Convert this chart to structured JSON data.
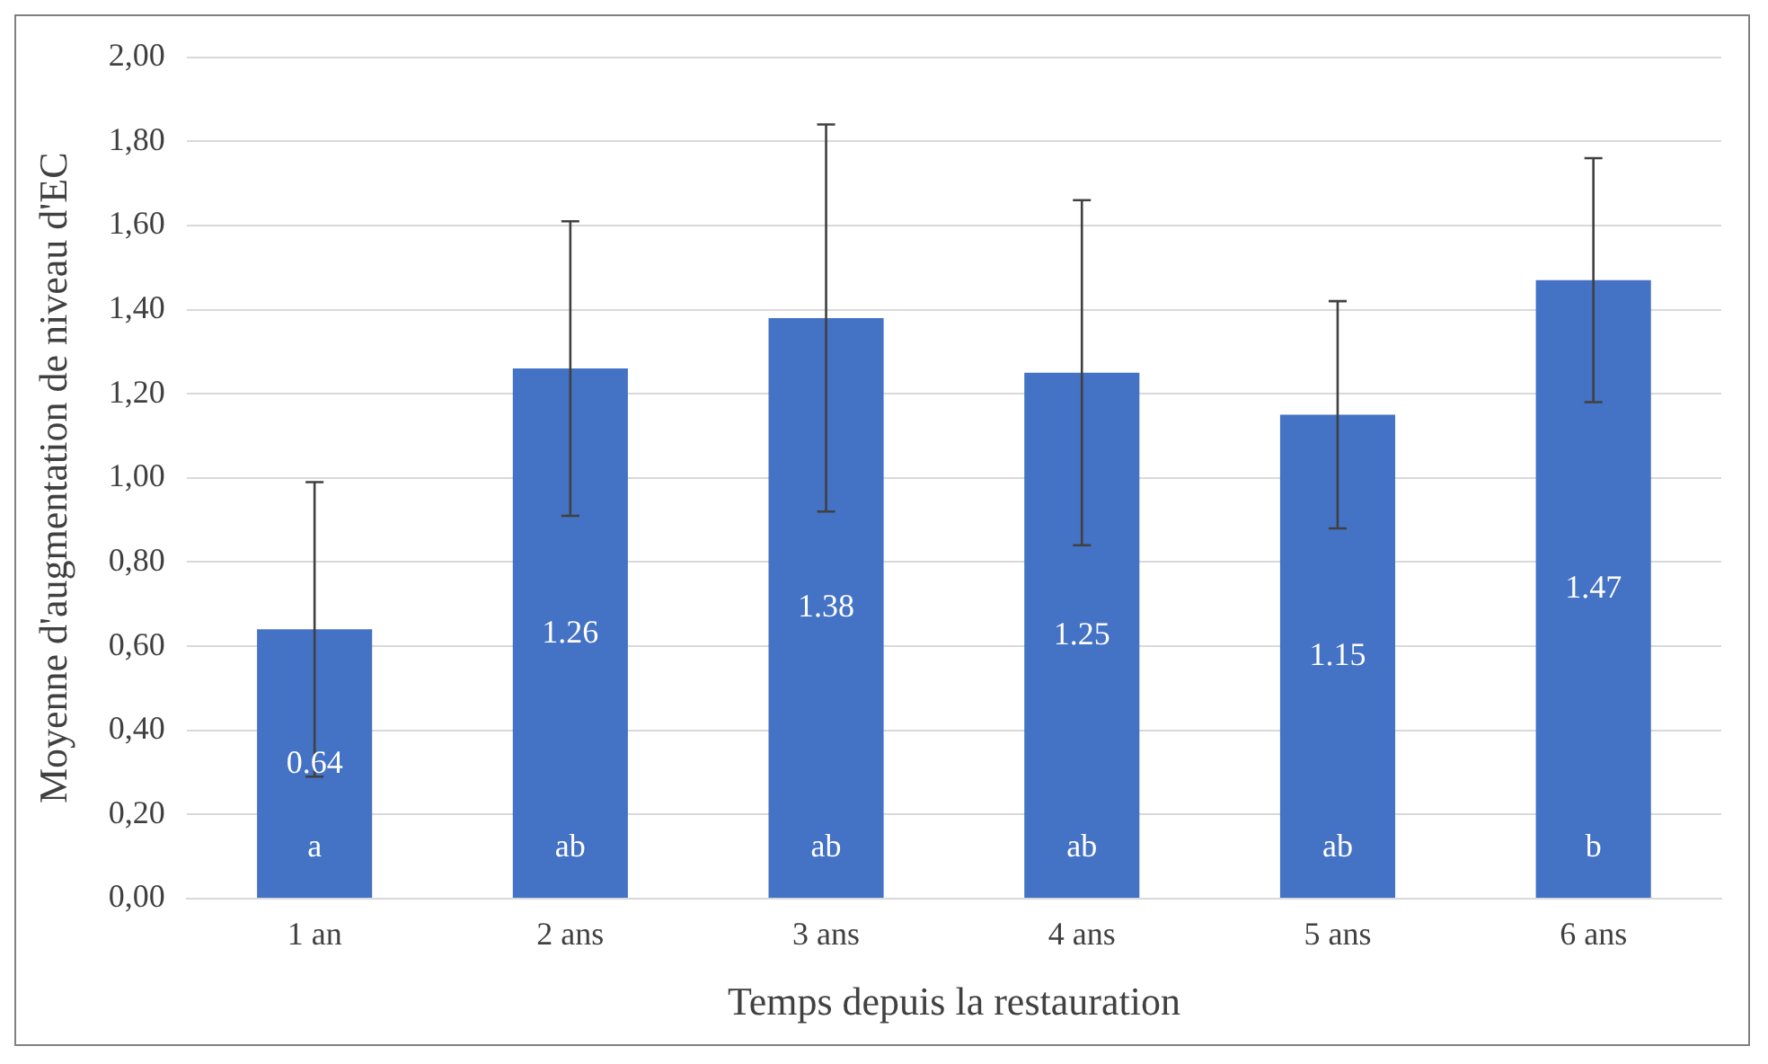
{
  "chart_data": {
    "type": "bar",
    "xlabel": "Temps depuis la restauration",
    "ylabel": "Moyenne d'augmentation de niveau d'EC",
    "categories": [
      "1 an",
      "2 ans",
      "3 ans",
      "4 ans",
      "5 ans",
      "6 ans"
    ],
    "values": [
      0.64,
      1.26,
      1.38,
      1.25,
      1.15,
      1.47
    ],
    "errors": [
      0.35,
      0.35,
      0.46,
      0.41,
      0.27,
      0.29
    ],
    "color": "#4472c4",
    "data_labels": true,
    "ylim": [
      0,
      2
    ],
    "yticks": [
      {
        "value": 0,
        "label": "0,00"
      },
      {
        "value": 0.2,
        "label": "0,20"
      },
      {
        "value": 0.4,
        "label": "0,40"
      },
      {
        "value": 0.6,
        "label": "0,60"
      },
      {
        "value": 0.8,
        "label": "0,80"
      },
      {
        "value": 1,
        "label": "1,00"
      },
      {
        "value": 1.2,
        "label": "1,20"
      },
      {
        "value": 1.4,
        "label": "1,40"
      },
      {
        "value": 1.6,
        "label": "1,60"
      },
      {
        "value": 1.8,
        "label": "1,80"
      },
      {
        "value": 2,
        "label": "2,00"
      }
    ],
    "grid": "y",
    "legend": false,
    "annotations": [
      "a",
      "ab",
      "ab",
      "ab",
      "ab",
      "b"
    ]
  }
}
